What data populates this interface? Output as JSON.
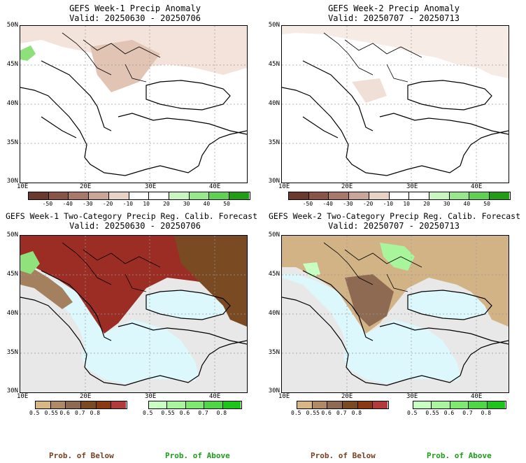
{
  "panels": [
    {
      "title": "GEFS Week-1 Precip Anomaly",
      "valid": "Valid: 20250630 - 20250706"
    },
    {
      "title": "GEFS Week-2 Precip Anomaly",
      "valid": "Valid: 20250707 - 20250713"
    },
    {
      "title": "GEFS Week-1 Two-Category Precip Reg. Calib. Forecast",
      "valid": "Valid: 20250630 - 20250706"
    },
    {
      "title": "GEFS Week-2 Two-Category Precip Reg. Calib. Forecast",
      "valid": "Valid: 20250707 - 20250713"
    }
  ],
  "lat_labels": [
    "50N",
    "45N",
    "40N",
    "35N",
    "30N"
  ],
  "lon_labels": [
    "10E",
    "20E",
    "30E",
    "40E"
  ],
  "anomaly_scale": {
    "ticks": [
      "-50",
      "-40",
      "-30",
      "-20",
      "-10",
      "10",
      "20",
      "30",
      "40",
      "50"
    ],
    "colors": [
      "#6b3a2e",
      "#8a5446",
      "#a8786a",
      "#c9a697",
      "#e8d2c6",
      "#ffffff",
      "#ffffff",
      "#c9f5c0",
      "#96e88a",
      "#5fd152",
      "#1f9e14"
    ]
  },
  "below_scale": {
    "ticks": [
      "0.5",
      "0.55",
      "0.6",
      "0.7",
      "0.8"
    ],
    "colors": [
      "#d9b784",
      "#b08a66",
      "#8f6a52",
      "#7a4a22",
      "#8a3a12",
      "#b33a3a"
    ]
  },
  "above_scale": {
    "ticks": [
      "0.5",
      "0.55",
      "0.6",
      "0.7",
      "0.8"
    ],
    "colors": [
      "#c9ffc2",
      "#a8f59c",
      "#7ee870",
      "#4fd646",
      "#1fc41a"
    ]
  },
  "legend": {
    "below": "Prob. of Below",
    "above": "Prob. of Above"
  },
  "colors": {
    "sea_prob": "#dcf8fc",
    "land_outside": "#e8e8e8",
    "below_text": "#7a3f1f",
    "above_text": "#1a9e1a"
  }
}
